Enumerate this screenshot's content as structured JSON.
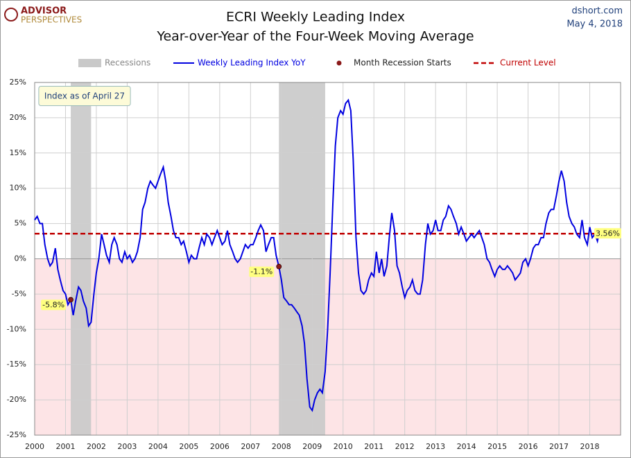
{
  "chart_data": {
    "type": "line",
    "brand": {
      "line1": "ADVISOR",
      "line2": "PERSPECTIVES"
    },
    "title": "ECRI Weekly Leading Index",
    "subtitle": "Year-over-Year of the Four-Week Moving Average",
    "source": "dshort.com",
    "date": "May 4, 2018",
    "annotation": "Index as of April 27",
    "xlim": [
      2000,
      2019
    ],
    "xticks": [
      2000,
      2001,
      2002,
      2003,
      2004,
      2005,
      2006,
      2007,
      2008,
      2009,
      2010,
      2011,
      2012,
      2013,
      2014,
      2015,
      2016,
      2017,
      2018
    ],
    "ylim": [
      -25,
      25
    ],
    "yticks": [
      {
        "value": -25,
        "label": "-25%"
      },
      {
        "value": -20,
        "label": "-20%"
      },
      {
        "value": -15,
        "label": "-15%"
      },
      {
        "value": -10,
        "label": "-10%"
      },
      {
        "value": -5,
        "label": "-5%"
      },
      {
        "value": 0,
        "label": "0%"
      },
      {
        "value": 5,
        "label": "5%"
      },
      {
        "value": 10,
        "label": "10%"
      },
      {
        "value": 15,
        "label": "15%"
      },
      {
        "value": 20,
        "label": "20%"
      },
      {
        "value": 25,
        "label": "25%"
      }
    ],
    "grid": true,
    "negative_fill": "#fde4e6",
    "recessions": {
      "name": "Recessions",
      "color": "#c9c9c9",
      "periods": [
        {
          "start": 2001.17,
          "end": 2001.83
        },
        {
          "start": 2007.92,
          "end": 2009.42
        }
      ]
    },
    "recession_starts": {
      "name": "Month Recession Starts",
      "color": "#8b1a1a",
      "x": [
        2001.17,
        2007.92
      ],
      "values": [
        -5.8,
        -1.1
      ],
      "value_labels": [
        "-5.8%",
        "-1.1%"
      ]
    },
    "current_level": {
      "name": "Current Level",
      "color": "#c00000",
      "value": 3.56,
      "label": "3.56%"
    },
    "x": [
      2000.0,
      2000.08,
      2000.17,
      2000.25,
      2000.33,
      2000.42,
      2000.5,
      2000.58,
      2000.67,
      2000.75,
      2000.83,
      2000.92,
      2001.0,
      2001.08,
      2001.17,
      2001.25,
      2001.33,
      2001.42,
      2001.5,
      2001.58,
      2001.67,
      2001.75,
      2001.83,
      2001.92,
      2002.0,
      2002.08,
      2002.17,
      2002.25,
      2002.33,
      2002.42,
      2002.5,
      2002.58,
      2002.67,
      2002.75,
      2002.83,
      2002.92,
      2003.0,
      2003.08,
      2003.17,
      2003.25,
      2003.33,
      2003.42,
      2003.5,
      2003.58,
      2003.67,
      2003.75,
      2003.83,
      2003.92,
      2004.0,
      2004.08,
      2004.17,
      2004.25,
      2004.33,
      2004.42,
      2004.5,
      2004.58,
      2004.67,
      2004.75,
      2004.83,
      2004.92,
      2005.0,
      2005.08,
      2005.17,
      2005.25,
      2005.33,
      2005.42,
      2005.5,
      2005.58,
      2005.67,
      2005.75,
      2005.83,
      2005.92,
      2006.0,
      2006.08,
      2006.17,
      2006.25,
      2006.33,
      2006.42,
      2006.5,
      2006.58,
      2006.67,
      2006.75,
      2006.83,
      2006.92,
      2007.0,
      2007.08,
      2007.17,
      2007.25,
      2007.33,
      2007.42,
      2007.5,
      2007.58,
      2007.67,
      2007.75,
      2007.83,
      2007.92,
      2008.0,
      2008.08,
      2008.17,
      2008.25,
      2008.33,
      2008.42,
      2008.5,
      2008.58,
      2008.67,
      2008.75,
      2008.83,
      2008.92,
      2009.0,
      2009.08,
      2009.17,
      2009.25,
      2009.33,
      2009.42,
      2009.5,
      2009.58,
      2009.67,
      2009.75,
      2009.83,
      2009.92,
      2010.0,
      2010.08,
      2010.17,
      2010.25,
      2010.33,
      2010.42,
      2010.5,
      2010.58,
      2010.67,
      2010.75,
      2010.83,
      2010.92,
      2011.0,
      2011.08,
      2011.17,
      2011.25,
      2011.33,
      2011.42,
      2011.5,
      2011.58,
      2011.67,
      2011.75,
      2011.83,
      2011.92,
      2012.0,
      2012.08,
      2012.17,
      2012.25,
      2012.33,
      2012.42,
      2012.5,
      2012.58,
      2012.67,
      2012.75,
      2012.83,
      2012.92,
      2013.0,
      2013.08,
      2013.17,
      2013.25,
      2013.33,
      2013.42,
      2013.5,
      2013.58,
      2013.67,
      2013.75,
      2013.83,
      2013.92,
      2014.0,
      2014.08,
      2014.17,
      2014.25,
      2014.33,
      2014.42,
      2014.5,
      2014.58,
      2014.67,
      2014.75,
      2014.83,
      2014.92,
      2015.0,
      2015.08,
      2015.17,
      2015.25,
      2015.33,
      2015.42,
      2015.5,
      2015.58,
      2015.67,
      2015.75,
      2015.83,
      2015.92,
      2016.0,
      2016.08,
      2016.17,
      2016.25,
      2016.33,
      2016.42,
      2016.5,
      2016.58,
      2016.67,
      2016.75,
      2016.83,
      2016.92,
      2017.0,
      2017.08,
      2017.17,
      2017.25,
      2017.33,
      2017.42,
      2017.5,
      2017.58,
      2017.67,
      2017.75,
      2017.83,
      2017.92,
      2018.0,
      2018.08,
      2018.17,
      2018.25,
      2018.3
    ],
    "series": [
      {
        "name": "Weekly Leading Index YoY",
        "color": "#0000e0",
        "values": [
          5.5,
          6,
          5,
          5,
          2,
          0,
          -1,
          -0.5,
          1.5,
          -1.5,
          -3,
          -4.5,
          -5,
          -6.5,
          -5.8,
          -8,
          -6,
          -4,
          -4.5,
          -6,
          -7,
          -9.5,
          -9,
          -5,
          -2,
          0,
          3.5,
          2,
          0.5,
          -0.5,
          2,
          3,
          2,
          0,
          -0.5,
          1,
          0,
          0.5,
          -0.5,
          0,
          1,
          3,
          7,
          8,
          10,
          11,
          10.5,
          10,
          11,
          12,
          13,
          11,
          8,
          6,
          4,
          3,
          3,
          2,
          2.5,
          1,
          -0.5,
          0.5,
          0,
          0,
          1.5,
          3,
          2,
          3.5,
          3,
          2,
          3,
          4,
          3,
          2,
          2.5,
          4,
          2,
          1,
          0,
          -0.5,
          0,
          1,
          2,
          1.5,
          2,
          2,
          3,
          4,
          4.8,
          4,
          1,
          2,
          3,
          3,
          0.5,
          -1.1,
          -3,
          -5.5,
          -6,
          -6.5,
          -6.5,
          -7,
          -7.5,
          -8,
          -9.5,
          -12,
          -17,
          -21,
          -21.5,
          -20,
          -19,
          -18.5,
          -19,
          -16,
          -10,
          -2,
          8,
          16,
          20,
          21,
          20.5,
          22,
          22.5,
          21,
          14,
          3,
          -2,
          -4.5,
          -5,
          -4.5,
          -3,
          -2,
          -2.5,
          1,
          -2,
          0,
          -2.5,
          -1,
          3,
          6.5,
          4,
          -1,
          -2,
          -4,
          -5.5,
          -4.5,
          -4,
          -3,
          -4.5,
          -5,
          -5,
          -3,
          2,
          5,
          3.5,
          4,
          5.5,
          4,
          4,
          5.5,
          6,
          7.5,
          7,
          6,
          5,
          3.5,
          4.5,
          3.5,
          2.5,
          3,
          3.5,
          3,
          3.5,
          4,
          3,
          2,
          0,
          -0.5,
          -1.5,
          -2.5,
          -1.5,
          -1,
          -1.5,
          -1.5,
          -1,
          -1.5,
          -2,
          -3,
          -2.5,
          -2,
          -0.5,
          0,
          -1,
          0,
          1.5,
          2,
          2,
          3,
          3,
          5,
          6.5,
          7,
          7,
          9,
          11,
          12.5,
          11,
          8,
          6,
          5,
          4.5,
          3.5,
          3,
          5.5,
          3,
          2,
          4.5,
          3,
          3.5,
          2.5,
          3.56
        ]
      }
    ]
  }
}
